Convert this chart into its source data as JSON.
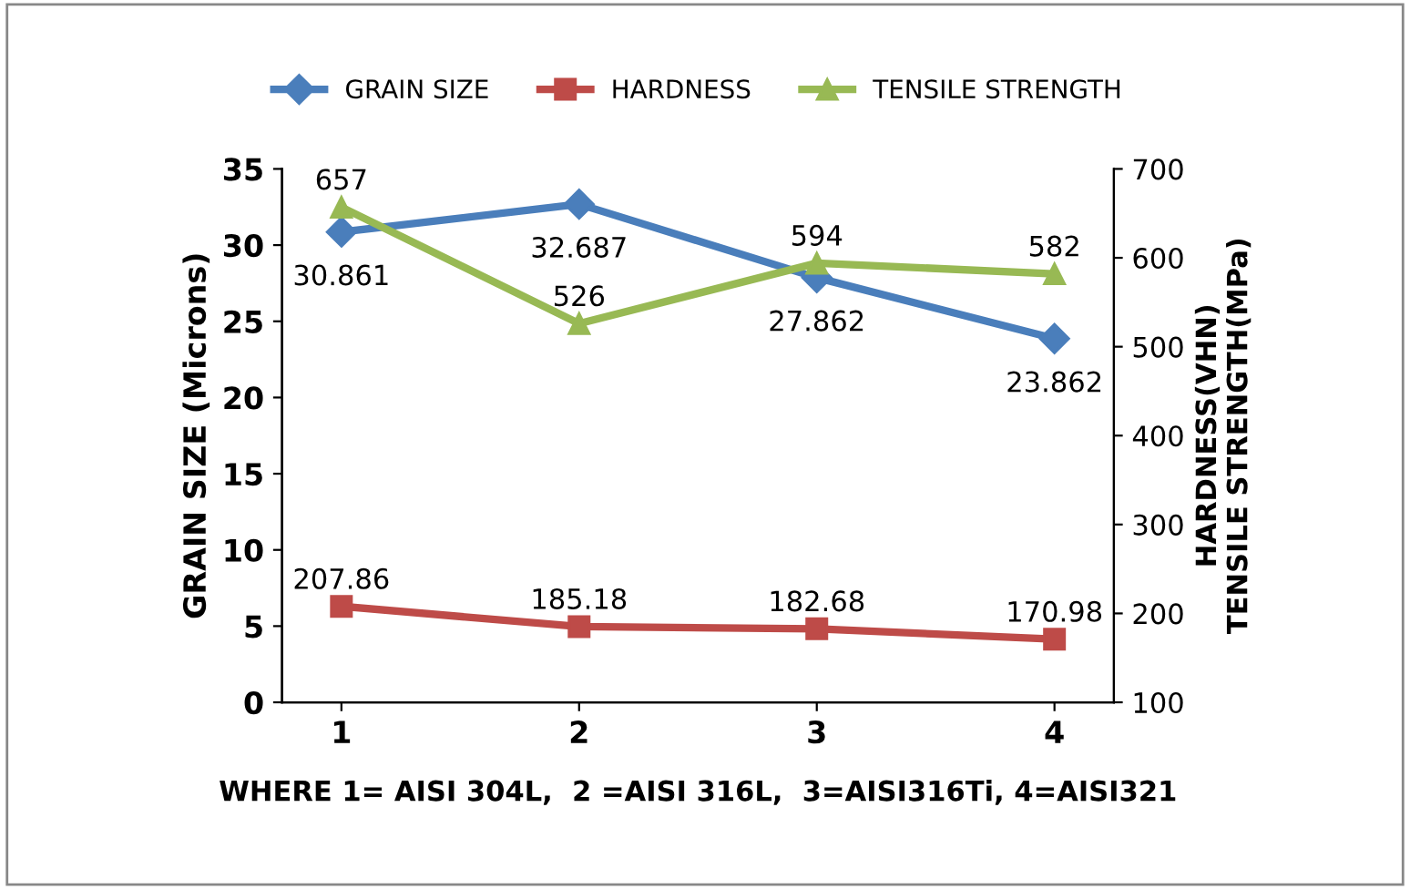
{
  "chart_data": {
    "type": "line",
    "xlabel": "WHERE 1= AISI 304L,  2 =AISI 316L,  3=AISI316Ti, 4=AISI321",
    "ylabel": "GRAIN SIZE (Microns)",
    "y2label": "HARDNESS(VHN)\nTENSILE STRENGTH(MPa)",
    "categories": [
      "1",
      "2",
      "3",
      "4"
    ],
    "series": [
      {
        "name": "GRAIN SIZE",
        "color": "#4a7ebb",
        "marker": "diamond",
        "values": [
          30.861,
          32.687,
          27.862,
          23.862
        ]
      },
      {
        "name": "HARDNESS",
        "color": "#be4b48",
        "marker": "square",
        "axis": "y2",
        "values": [
          207.86,
          185.18,
          182.68,
          170.98
        ]
      },
      {
        "name": "TENSILE STRENGTH",
        "color": "#98b954",
        "marker": "triangle",
        "axis": "y2",
        "values": [
          657,
          526,
          594,
          582
        ]
      }
    ],
    "ylim": [
      0,
      35
    ],
    "yticks": [
      0,
      5,
      10,
      15,
      20,
      25,
      30,
      35
    ],
    "y2lim": [
      100,
      700
    ],
    "y2ticks": [
      100,
      200,
      300,
      400,
      500,
      600,
      700
    ],
    "data_labels": true,
    "legend": "top",
    "grid": false,
    "line_style": "solid"
  }
}
